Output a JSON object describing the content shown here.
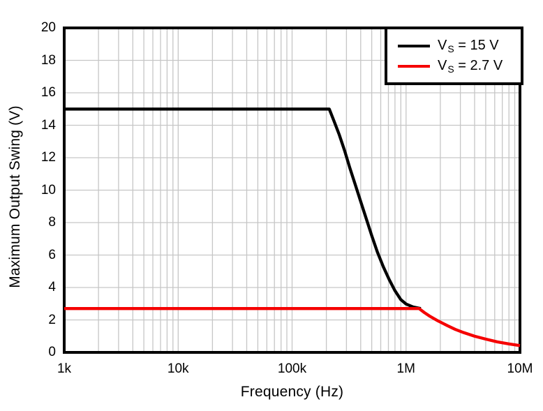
{
  "figure": {
    "xlabel": "Frequency (Hz)",
    "ylabel": "Maximum Output Swing (V)"
  },
  "legend": {
    "position": "top-right",
    "items": [
      {
        "var": "V",
        "sub": "S",
        "rest": " = 15 V",
        "color": "#000000"
      },
      {
        "var": "V",
        "sub": "S",
        "rest": " = 2.7 V",
        "color": "#F50000"
      }
    ]
  },
  "chart_data": {
    "type": "line",
    "title": "",
    "xlabel": "Frequency (Hz)",
    "ylabel": "Maximum Output Swing (V)",
    "x_scale": "log",
    "xlim_hz": [
      1000,
      10000000
    ],
    "x_ticks": [
      {
        "label": "1k",
        "hz": 1000
      },
      {
        "label": "10k",
        "hz": 10000
      },
      {
        "label": "100k",
        "hz": 100000
      },
      {
        "label": "1M",
        "hz": 1000000
      },
      {
        "label": "10M",
        "hz": 10000000
      }
    ],
    "y_scale": "linear",
    "ylim": [
      0,
      20
    ],
    "y_ticks": [
      0,
      2,
      4,
      6,
      8,
      10,
      12,
      14,
      16,
      18,
      20
    ],
    "grid": true,
    "grid_minor_x_log": true,
    "legend_position": "top-right",
    "colors": {
      "axis": "#000000",
      "grid": "#C6C6C6",
      "series_vs15": "#000000",
      "series_vs27": "#F50000"
    },
    "series": [
      {
        "name": "VS = 15 V",
        "color": "#000000",
        "points": [
          [
            1000,
            15
          ],
          [
            50000,
            15
          ],
          [
            100000,
            15
          ],
          [
            212000,
            15
          ],
          [
            235000,
            14.2
          ],
          [
            260000,
            13.4
          ],
          [
            290000,
            12.4
          ],
          [
            320000,
            11.4
          ],
          [
            360000,
            10.3
          ],
          [
            400000,
            9.3
          ],
          [
            450000,
            8.2
          ],
          [
            500000,
            7.2
          ],
          [
            560000,
            6.2
          ],
          [
            630000,
            5.3
          ],
          [
            710000,
            4.5
          ],
          [
            800000,
            3.8
          ],
          [
            900000,
            3.25
          ],
          [
            1000000,
            2.98
          ],
          [
            1150000,
            2.8
          ],
          [
            1350000,
            2.7
          ]
        ]
      },
      {
        "name": "VS = 2.7 V",
        "color": "#F50000",
        "points": [
          [
            1000,
            2.7
          ],
          [
            500000,
            2.7
          ],
          [
            1300000,
            2.7
          ],
          [
            1450000,
            2.45
          ],
          [
            1600000,
            2.25
          ],
          [
            1900000,
            1.95
          ],
          [
            2300000,
            1.65
          ],
          [
            2700000,
            1.42
          ],
          [
            3200000,
            1.22
          ],
          [
            4000000,
            1.0
          ],
          [
            5000000,
            0.82
          ],
          [
            6300000,
            0.65
          ],
          [
            8000000,
            0.52
          ],
          [
            10000000,
            0.42
          ]
        ]
      }
    ]
  }
}
